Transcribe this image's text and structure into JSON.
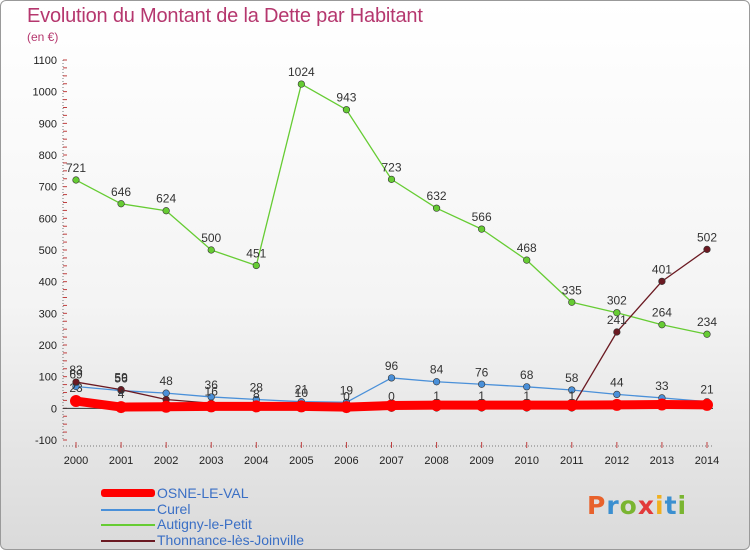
{
  "header": {
    "title": "Evolution du Montant de la Dette par Habitant",
    "subtitle": "(en €)"
  },
  "logo": {
    "text": "Proxiti",
    "colors": [
      "#e8622c",
      "#3b8fd0",
      "#7ab531",
      "#e23a3a",
      "#f0b020",
      "#3b8fd0",
      "#7ab531"
    ]
  },
  "chart_data": {
    "type": "line",
    "x": [
      "2000",
      "2001",
      "2002",
      "2003",
      "2004",
      "2005",
      "2006",
      "2007",
      "2008",
      "2009",
      "2010",
      "2011",
      "2012",
      "2013",
      "2014"
    ],
    "y_ticks": [
      "-100",
      "0",
      "100",
      "200",
      "300",
      "400",
      "500",
      "600",
      "700",
      "800",
      "900",
      "1000",
      "1100"
    ],
    "ylim": [
      -100,
      1100
    ],
    "grid": false,
    "legend_position": "bottom-left",
    "series": [
      {
        "name": "OSNE-LE-VAL",
        "color": "#ff0000",
        "values": [
          23,
          4,
          5,
          6,
          6,
          6,
          4,
          9,
          10,
          10,
          10,
          10,
          11,
          12,
          11
        ],
        "labels": [
          "23",
          "4",
          "",
          "",
          "",
          "",
          "",
          "",
          "",
          "",
          "",
          "",
          "",
          "",
          ""
        ]
      },
      {
        "name": "Curel",
        "color": "#4a90d9",
        "values": [
          69,
          56,
          48,
          36,
          28,
          21,
          19,
          96,
          84,
          76,
          68,
          58,
          44,
          33,
          21
        ],
        "labels": [
          "69",
          "56",
          "48",
          "36",
          "28",
          "21",
          "19",
          "96",
          "84",
          "76",
          "68",
          "58",
          "44",
          "33",
          "21"
        ]
      },
      {
        "name": "Autigny-le-Petit",
        "color": "#66cc33",
        "values": [
          721,
          646,
          624,
          500,
          451,
          1024,
          943,
          723,
          632,
          566,
          468,
          335,
          302,
          264,
          234
        ],
        "labels": [
          "721",
          "646",
          "624",
          "500",
          "451",
          "1024",
          "943",
          "723",
          "632",
          "566",
          "468",
          "335",
          "302",
          "264",
          "234"
        ]
      },
      {
        "name": "Thonnance-lès-Joinville",
        "color": "#6b1a22",
        "values": [
          83,
          59,
          28,
          16,
          8,
          10,
          0,
          0,
          1,
          1,
          1,
          1,
          241,
          401,
          502
        ],
        "labels": [
          "83",
          "59",
          "",
          "16",
          "8",
          "10",
          "0",
          "0",
          "1",
          "1",
          "1",
          "1",
          "241",
          "401",
          "502"
        ]
      }
    ]
  }
}
